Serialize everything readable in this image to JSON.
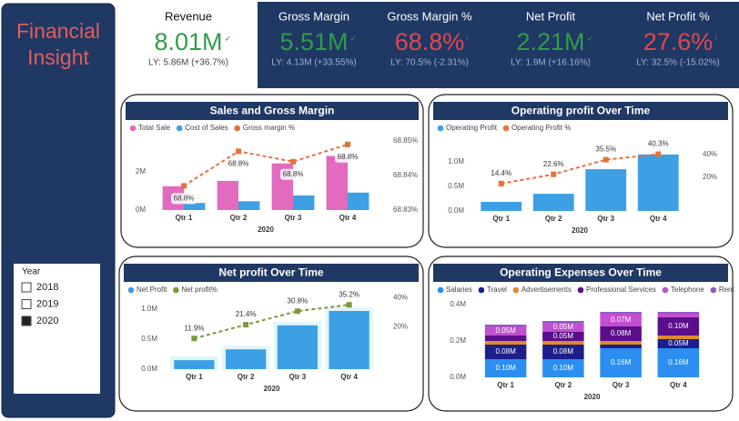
{
  "title": "Financial Insight",
  "slicer": {
    "title": "Year",
    "options": [
      "2018",
      "2019",
      "2020"
    ],
    "selected": "2020"
  },
  "kpis": [
    {
      "title": "Revenue",
      "value": "8.01M",
      "icon": "✓",
      "ly": "LY: 5.86M (+36.7%)",
      "color": "#2e9e47"
    },
    {
      "title": "Gross Margin",
      "value": "5.51M",
      "icon": "✓",
      "ly": "LY: 4.13M (+33.55%)",
      "color": "#2e9e47"
    },
    {
      "title": "Gross Margin %",
      "value": "68.8%",
      "icon": "!",
      "ly": "LY: 70.5% (-2.31%)",
      "color": "#e0474c"
    },
    {
      "title": "Net Profit",
      "value": "2.21M",
      "icon": "✓",
      "ly": "LY: 1.9M (+16.16%)",
      "color": "#2e9e47"
    },
    {
      "title": "Net Profit %",
      "value": "27.6%",
      "icon": "!",
      "ly": "LY: 32.5% (-15.02%)",
      "color": "#e0474c"
    }
  ],
  "chart_data": [
    {
      "type": "combo",
      "title": "Sales and Gross Margin",
      "categories": [
        "Qtr 1",
        "Qtr 2",
        "Qtr 3",
        "Qtr 4"
      ],
      "xlabel": "2020",
      "series": [
        {
          "name": "Total Sale",
          "color": "#e36bbf",
          "values": [
            1.24,
            1.52,
            2.43,
            2.82
          ]
        },
        {
          "name": "Cost of Sales",
          "color": "#3ea0e4",
          "values": [
            0.37,
            0.46,
            0.76,
            0.91
          ]
        },
        {
          "name": "Gross margin %",
          "color": "#e8703a",
          "axis": "y2",
          "values": [
            68.837,
            68.847,
            68.844,
            68.849
          ],
          "value_labels": [
            "68.8%",
            "68.8%",
            "68.8%",
            "68.8%"
          ]
        }
      ],
      "ylim": [
        0,
        3.6
      ],
      "yticks": [
        {
          "value": 0,
          "label": "0M"
        },
        {
          "value": 2,
          "label": "2M"
        }
      ],
      "y2lim": [
        68.83,
        68.85
      ],
      "y2ticks": [
        {
          "value": 68.83,
          "label": "68.83%"
        },
        {
          "value": 68.84,
          "label": "68.84%"
        },
        {
          "value": 68.85,
          "label": "68.85%"
        }
      ],
      "grid": false
    },
    {
      "type": "combo",
      "title": "Operating profit Over Time",
      "categories": [
        "Qtr 1",
        "Qtr 2",
        "Qtr 3",
        "Qtr 4"
      ],
      "xlabel": "2020",
      "series": [
        {
          "name": "Operating Profit",
          "color": "#3ea0e4",
          "values": [
            0.185,
            0.35,
            0.85,
            1.15
          ]
        },
        {
          "name": "Operating Profit %",
          "color": "#e8703a",
          "axis": "y2",
          "values": [
            14.4,
            22.6,
            35.5,
            40.3
          ],
          "value_labels": [
            "14.4%",
            "22.6%",
            "35.5%",
            "40.3%"
          ]
        }
      ],
      "ylim": [
        0,
        1.25
      ],
      "yticks": [
        {
          "value": 0,
          "label": "0.0M"
        },
        {
          "value": 0.5,
          "label": "0.5M"
        },
        {
          "value": 1,
          "label": "1.0M"
        }
      ],
      "y2lim": [
        -9.7,
        44.4
      ],
      "y2ticks": [
        {
          "value": 20,
          "label": "20%"
        },
        {
          "value": 40,
          "label": "40%"
        }
      ],
      "grid": false
    },
    {
      "type": "combo",
      "title": "Net profit Over Time",
      "categories": [
        "Qtr 1",
        "Qtr 2",
        "Qtr 3",
        "Qtr 4"
      ],
      "xlabel": "2020",
      "series": [
        {
          "name": "Net Profit",
          "color": "#3ea0e4",
          "values": [
            0.15,
            0.33,
            0.73,
            0.97
          ]
        },
        {
          "name": "Net profit%",
          "color": "#7a9a3a",
          "axis": "y2",
          "values": [
            11.9,
            21.4,
            30.8,
            35.2
          ],
          "value_labels": [
            "11.9%",
            "21.4%",
            "30.8%",
            "35.2%"
          ]
        }
      ],
      "ylim": [
        0,
        1.2
      ],
      "yticks": [
        {
          "value": 0,
          "label": "0.0M"
        },
        {
          "value": 0.5,
          "label": "0.5M"
        },
        {
          "value": 1,
          "label": "1.0M"
        }
      ],
      "y2lim": [
        -9.4,
        40.5
      ],
      "y2ticks": [
        {
          "value": 20,
          "label": "20%"
        },
        {
          "value": 40,
          "label": "40%"
        }
      ],
      "grid": false
    },
    {
      "type": "stacked_bar",
      "title": "Operating Expenses Over Time",
      "categories": [
        "Qtr 1",
        "Qtr 2",
        "Qtr 3",
        "Qtr 4"
      ],
      "xlabel": "2020",
      "series": [
        {
          "name": "Salaries",
          "color": "#2b8ef0",
          "values": [
            0.1,
            0.1,
            0.16,
            0.16
          ],
          "value_labels": [
            "0.10M",
            "0.10M",
            "0.16M",
            "0.16M"
          ]
        },
        {
          "name": "Travel",
          "color": "#1c1f8a",
          "values": [
            0.08,
            0.08,
            0.02,
            0.05
          ],
          "value_labels": [
            "0.08M",
            "0.08M",
            null,
            "0.05M"
          ]
        },
        {
          "name": "Advertisements",
          "color": "#e08a2e",
          "values": [
            0.02,
            0.02,
            0.02,
            0.02
          ]
        },
        {
          "name": "Professional Services",
          "color": "#5a0e8a",
          "values": [
            0.03,
            0.05,
            0.08,
            0.1
          ],
          "value_labels": [
            null,
            "0.05M",
            "0.08M",
            "0.10M"
          ]
        },
        {
          "name": "Telephone",
          "color": "#c24fd0",
          "values": [
            0.05,
            0.05,
            0.07,
            0.02
          ],
          "value_labels": [
            "0.05M",
            "0.05M",
            "0.07M",
            null
          ]
        },
        {
          "name": "Rent",
          "color": "#8e5cc8",
          "values": [
            0.01,
            0.01,
            0.01,
            0.01
          ]
        }
      ],
      "ylim": [
        0,
        0.42
      ],
      "yticks": [
        {
          "value": 0,
          "label": "0.0M"
        },
        {
          "value": 0.2,
          "label": "0.2M"
        },
        {
          "value": 0.4,
          "label": "0.4M"
        }
      ],
      "grid": false
    }
  ]
}
